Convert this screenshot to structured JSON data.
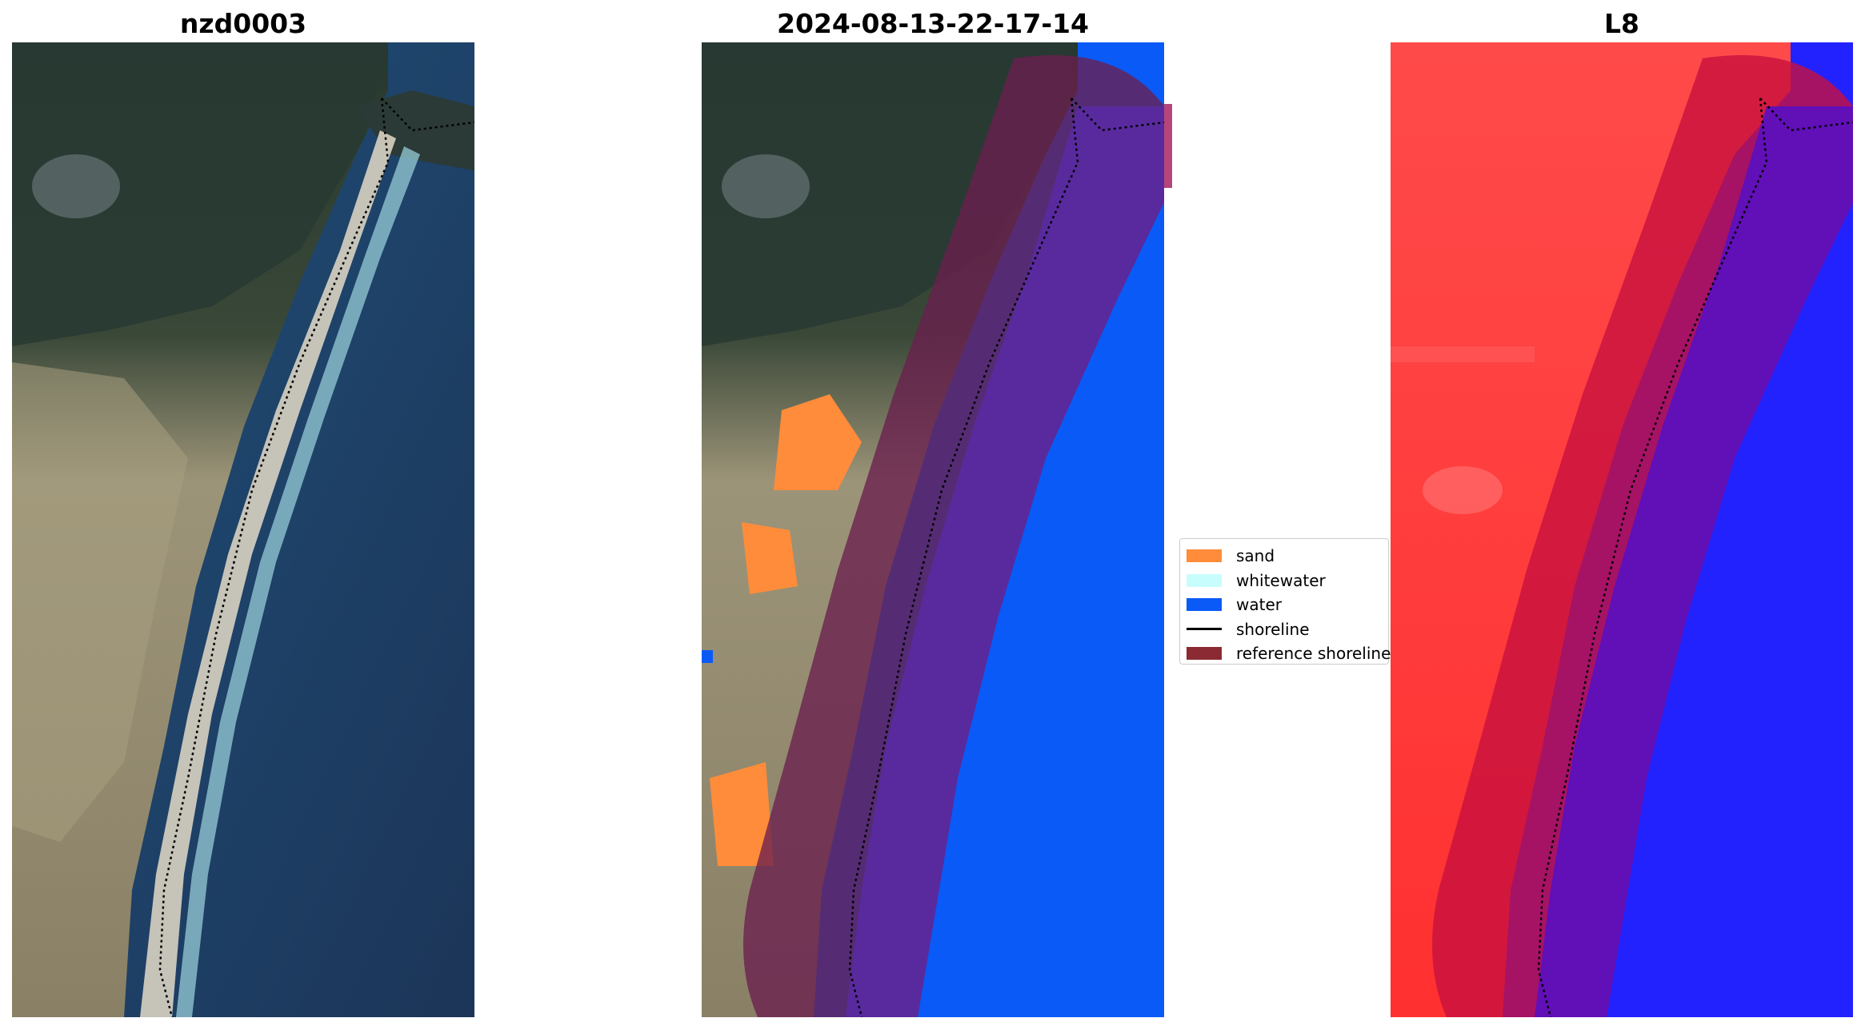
{
  "panels": [
    {
      "title": "nzd0003"
    },
    {
      "title": "2024-08-13-22-17-14"
    },
    {
      "title": "L8"
    }
  ],
  "legend": {
    "items": [
      {
        "label": "sand",
        "color": "#ff8c3a",
        "kind": "patch"
      },
      {
        "label": "whitewater",
        "color": "#c8fdfd",
        "kind": "patch"
      },
      {
        "label": "water",
        "color": "#0a5af7",
        "kind": "patch"
      },
      {
        "label": "shoreline",
        "color": "#000000",
        "kind": "line"
      },
      {
        "label": "reference shoreline",
        "color": "#8b2a33",
        "kind": "patch"
      }
    ]
  }
}
